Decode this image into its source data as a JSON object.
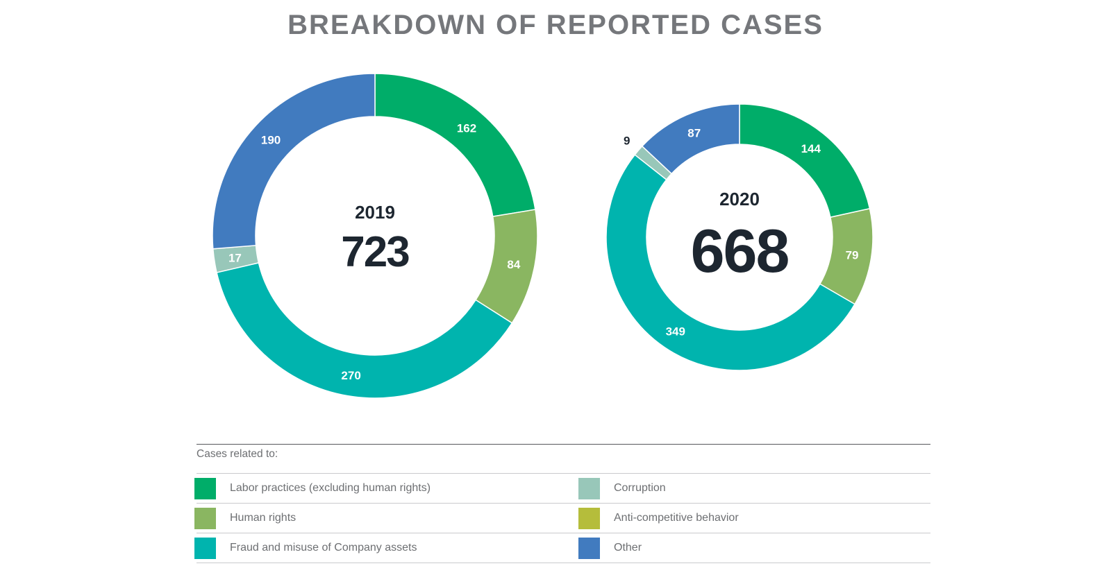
{
  "title": "BREAKDOWN OF REPORTED CASES",
  "colors": {
    "labor": "#00ad69",
    "human_rights": "#8ab661",
    "fraud": "#00b4ae",
    "corruption": "#98c7b9",
    "anti_competitive": "#b5bd3b",
    "other": "#417bbf",
    "center_text": "#1d2630"
  },
  "legend": {
    "heading": "Cases related to:",
    "items": [
      {
        "label": "Labor practices (excluding human rights)",
        "color": "#00ad69"
      },
      {
        "label": "Corruption",
        "color": "#98c7b9"
      },
      {
        "label": "Human rights",
        "color": "#8ab661"
      },
      {
        "label": "Anti-competitive behavior",
        "color": "#b5bd3b"
      },
      {
        "label": "Fraud and misuse of Company assets",
        "color": "#00b4ae"
      },
      {
        "label": "Other",
        "color": "#417bbf"
      }
    ]
  },
  "chart_data": [
    {
      "type": "pie",
      "year": "2019",
      "total": "723",
      "slices": [
        {
          "category": "Labor practices (excluding human rights)",
          "value": 162,
          "color": "#00ad69"
        },
        {
          "category": "Human rights",
          "value": 84,
          "color": "#8ab661"
        },
        {
          "category": "Fraud and misuse of Company assets",
          "value": 270,
          "color": "#00b4ae"
        },
        {
          "category": "Corruption",
          "value": 17,
          "color": "#98c7b9"
        },
        {
          "category": "Other",
          "value": 190,
          "color": "#417bbf"
        }
      ]
    },
    {
      "type": "pie",
      "year": "2020",
      "total": "668",
      "slices": [
        {
          "category": "Labor practices (excluding human rights)",
          "value": 144,
          "color": "#00ad69"
        },
        {
          "category": "Human rights",
          "value": 79,
          "color": "#8ab661"
        },
        {
          "category": "Fraud and misuse of Company assets",
          "value": 349,
          "color": "#00b4ae"
        },
        {
          "category": "Corruption",
          "value": 9,
          "color": "#98c7b9"
        },
        {
          "category": "Other",
          "value": 87,
          "color": "#417bbf"
        }
      ]
    }
  ]
}
